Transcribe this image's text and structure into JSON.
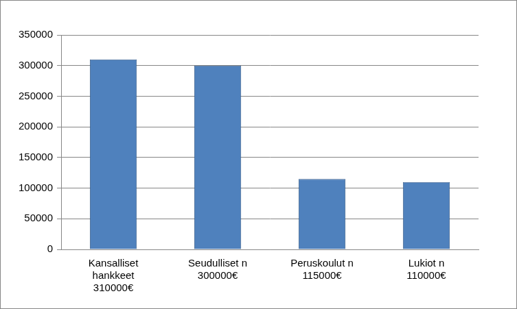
{
  "chart_data": {
    "type": "bar",
    "categories": [
      "Kansalliset\nhankkeet\n310000€",
      "Seudulliset n\n300000€",
      "Peruskoulut n\n115000€",
      "Lukiot n\n110000€"
    ],
    "values": [
      310000,
      300000,
      115000,
      110000
    ],
    "color": "#4f81bd",
    "ylim": [
      0,
      350000
    ],
    "yticks": [
      0,
      50000,
      100000,
      150000,
      200000,
      250000,
      300000,
      350000
    ],
    "grid": true
  }
}
